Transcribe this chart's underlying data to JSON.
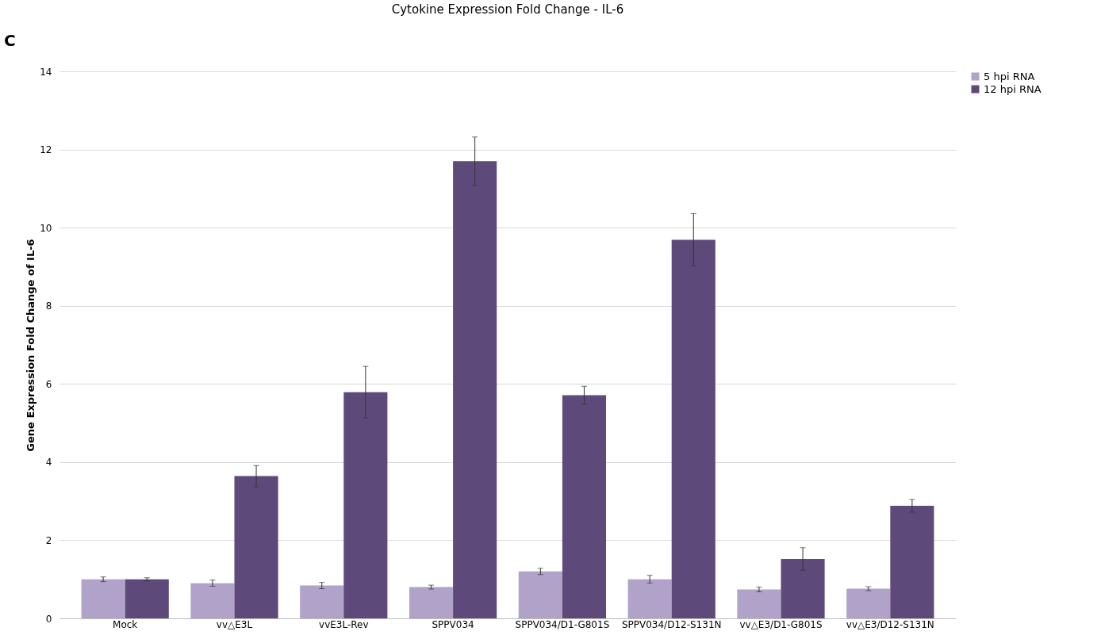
{
  "chart_data": {
    "type": "bar",
    "title": "Cytokine Expression Fold Change - IL-6",
    "ylabel": "Gene Expression Fold Change of IL-6",
    "annotations": [
      "C"
    ],
    "categories": [
      "Mock",
      "vv△E3L",
      "vvE3L-Rev",
      "SPPV034",
      "SPPV034/D1-G801S",
      "SPPV034/D12-S131N",
      "vv△E3/D1-G801S",
      "vv△E3/D12-S131N"
    ],
    "series": [
      {
        "name": "5 hpi RNA",
        "color": "#b1a2c9",
        "values": [
          1.0,
          0.9,
          0.84,
          0.8,
          1.2,
          1.0,
          0.74,
          0.76
        ],
        "errors": [
          0.06,
          0.08,
          0.08,
          0.05,
          0.08,
          0.1,
          0.06,
          0.05
        ]
      },
      {
        "name": "12 hpi RNA",
        "color": "#5e4a7a",
        "values": [
          1.0,
          3.64,
          5.79,
          11.7,
          5.71,
          9.69,
          1.52,
          2.88
        ],
        "errors": [
          0.04,
          0.27,
          0.66,
          0.62,
          0.23,
          0.67,
          0.29,
          0.16
        ]
      }
    ],
    "ylim": [
      0,
      14
    ],
    "yticks": [
      0,
      2,
      4,
      6,
      8,
      10,
      12,
      14
    ],
    "grid": "y",
    "legend": "right"
  }
}
